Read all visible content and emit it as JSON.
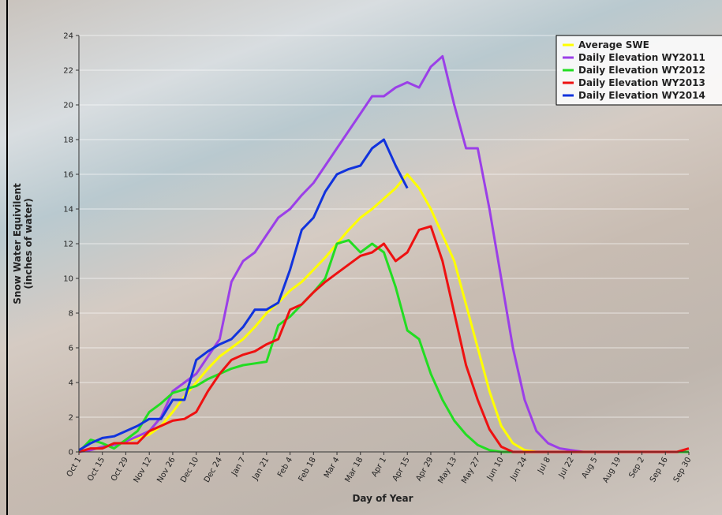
{
  "chart_data": {
    "type": "line",
    "xlabel": "Day of Year",
    "ylabel": [
      "Snow Water Equivilent",
      "(inches of water)"
    ],
    "xlim": [
      0,
      364
    ],
    "xticks": [
      {
        "value": 0,
        "label": "Oct 1"
      },
      {
        "value": 14,
        "label": "Oct 15"
      },
      {
        "value": 28,
        "label": "Oct 29"
      },
      {
        "value": 42,
        "label": "Nov 12"
      },
      {
        "value": 56,
        "label": "Nov 26"
      },
      {
        "value": 70,
        "label": "Dec 10"
      },
      {
        "value": 84,
        "label": "Dec 24"
      },
      {
        "value": 98,
        "label": "Jan 7"
      },
      {
        "value": 112,
        "label": "Jan 21"
      },
      {
        "value": 126,
        "label": "Feb 4"
      },
      {
        "value": 140,
        "label": "Feb 18"
      },
      {
        "value": 154,
        "label": "Mar 4"
      },
      {
        "value": 168,
        "label": "Mar 18"
      },
      {
        "value": 182,
        "label": "Apr 1"
      },
      {
        "value": 196,
        "label": "Apr 15"
      },
      {
        "value": 210,
        "label": "Apr 29"
      },
      {
        "value": 224,
        "label": "May 13"
      },
      {
        "value": 238,
        "label": "May 27"
      },
      {
        "value": 252,
        "label": "Jun 10"
      },
      {
        "value": 266,
        "label": "Jun 24"
      },
      {
        "value": 280,
        "label": "Jul 8"
      },
      {
        "value": 294,
        "label": "Jul 22"
      },
      {
        "value": 308,
        "label": "Aug 5"
      },
      {
        "value": 322,
        "label": "Aug 19"
      },
      {
        "value": 336,
        "label": "Sep 2"
      },
      {
        "value": 350,
        "label": "Sep 16"
      },
      {
        "value": 364,
        "label": "Sep 30"
      }
    ],
    "ylim": [
      0,
      24
    ],
    "yticks": [
      0,
      2,
      4,
      6,
      8,
      10,
      12,
      14,
      16,
      18,
      20,
      22,
      24
    ],
    "grid": true,
    "legend": "top-right",
    "x": [
      0,
      7,
      14,
      21,
      28,
      35,
      42,
      49,
      56,
      63,
      70,
      77,
      84,
      91,
      98,
      105,
      112,
      119,
      126,
      133,
      140,
      147,
      154,
      161,
      168,
      175,
      182,
      189,
      196,
      203,
      210,
      217,
      224,
      231,
      238,
      245,
      252,
      259,
      266,
      273,
      280,
      287,
      294,
      301,
      308,
      315,
      322,
      329,
      336,
      343,
      350,
      357,
      364
    ],
    "series": [
      {
        "name": "Average SWE",
        "color": "#ffff00",
        "values": [
          0,
          0.1,
          0.3,
          0.4,
          0.6,
          0.8,
          1.0,
          1.5,
          2.3,
          3.2,
          4.0,
          4.8,
          5.5,
          6.0,
          6.5,
          7.2,
          8.0,
          8.6,
          9.3,
          9.8,
          10.5,
          11.2,
          12.0,
          12.8,
          13.5,
          14.0,
          14.6,
          15.2,
          16.0,
          15.2,
          14.0,
          12.5,
          11.0,
          8.5,
          6.0,
          3.5,
          1.5,
          0.5,
          0.1,
          0,
          0,
          0,
          0,
          0,
          0,
          0,
          0,
          0,
          0,
          0,
          0,
          0,
          0
        ]
      },
      {
        "name": "Daily Elevation WY2011",
        "color": "#9b3fe8",
        "values": [
          0,
          0.1,
          0.3,
          0.4,
          0.6,
          0.9,
          1.2,
          2.0,
          3.5,
          4.0,
          4.5,
          5.5,
          6.5,
          9.8,
          11.0,
          11.5,
          12.5,
          13.5,
          14.0,
          14.8,
          15.5,
          16.5,
          17.5,
          18.5,
          19.5,
          20.5,
          20.5,
          21.0,
          21.3,
          21.0,
          22.2,
          22.8,
          20.0,
          17.5,
          17.5,
          14.0,
          10.0,
          6.0,
          3.0,
          1.2,
          0.5,
          0.2,
          0.1,
          0,
          0,
          0,
          0,
          0,
          0,
          0,
          0,
          0,
          0
        ]
      },
      {
        "name": "Daily Elevation WY2012",
        "color": "#22dd22",
        "values": [
          0,
          0.7,
          0.5,
          0.2,
          0.7,
          1.2,
          2.3,
          2.8,
          3.4,
          3.6,
          3.8,
          4.2,
          4.5,
          4.8,
          5.0,
          5.1,
          5.2,
          7.3,
          7.8,
          8.5,
          9.2,
          10.0,
          12.0,
          12.2,
          11.5,
          12.0,
          11.5,
          9.5,
          7.0,
          6.5,
          4.5,
          3.0,
          1.8,
          1.0,
          0.4,
          0.1,
          0,
          0,
          0,
          0,
          0,
          0,
          0,
          0,
          0,
          0,
          0,
          0,
          0,
          0,
          0,
          0,
          0
        ]
      },
      {
        "name": "Daily Elevation WY2013",
        "color": "#ee1111",
        "values": [
          0,
          0.2,
          0.2,
          0.5,
          0.5,
          0.5,
          1.2,
          1.5,
          1.8,
          1.9,
          2.3,
          3.5,
          4.5,
          5.3,
          5.6,
          5.8,
          6.2,
          6.5,
          8.2,
          8.5,
          9.2,
          9.8,
          10.3,
          10.8,
          11.3,
          11.5,
          12.0,
          11.0,
          11.5,
          12.8,
          13.0,
          11.0,
          8.0,
          5.0,
          3.0,
          1.3,
          0.3,
          0,
          0,
          0,
          0,
          0,
          0,
          0,
          0,
          0,
          0,
          0,
          0,
          0,
          0,
          0,
          0.2
        ]
      },
      {
        "name": "Daily Elevation WY2014",
        "color": "#1133dd",
        "values": [
          0.1,
          0.5,
          0.8,
          0.9,
          1.2,
          1.5,
          1.9,
          1.9,
          3.0,
          3.0,
          5.3,
          5.8,
          6.2,
          6.5,
          7.2,
          8.2,
          8.2,
          8.6,
          10.5,
          12.8,
          13.5,
          15.0,
          16.0,
          16.3,
          16.5,
          17.5,
          18.0,
          16.5,
          15.2,
          null,
          null,
          null,
          null,
          null,
          null,
          null,
          null,
          null,
          null,
          null,
          null,
          null,
          null,
          null,
          null,
          null,
          null,
          null,
          null,
          null,
          null,
          null,
          null
        ]
      }
    ]
  }
}
